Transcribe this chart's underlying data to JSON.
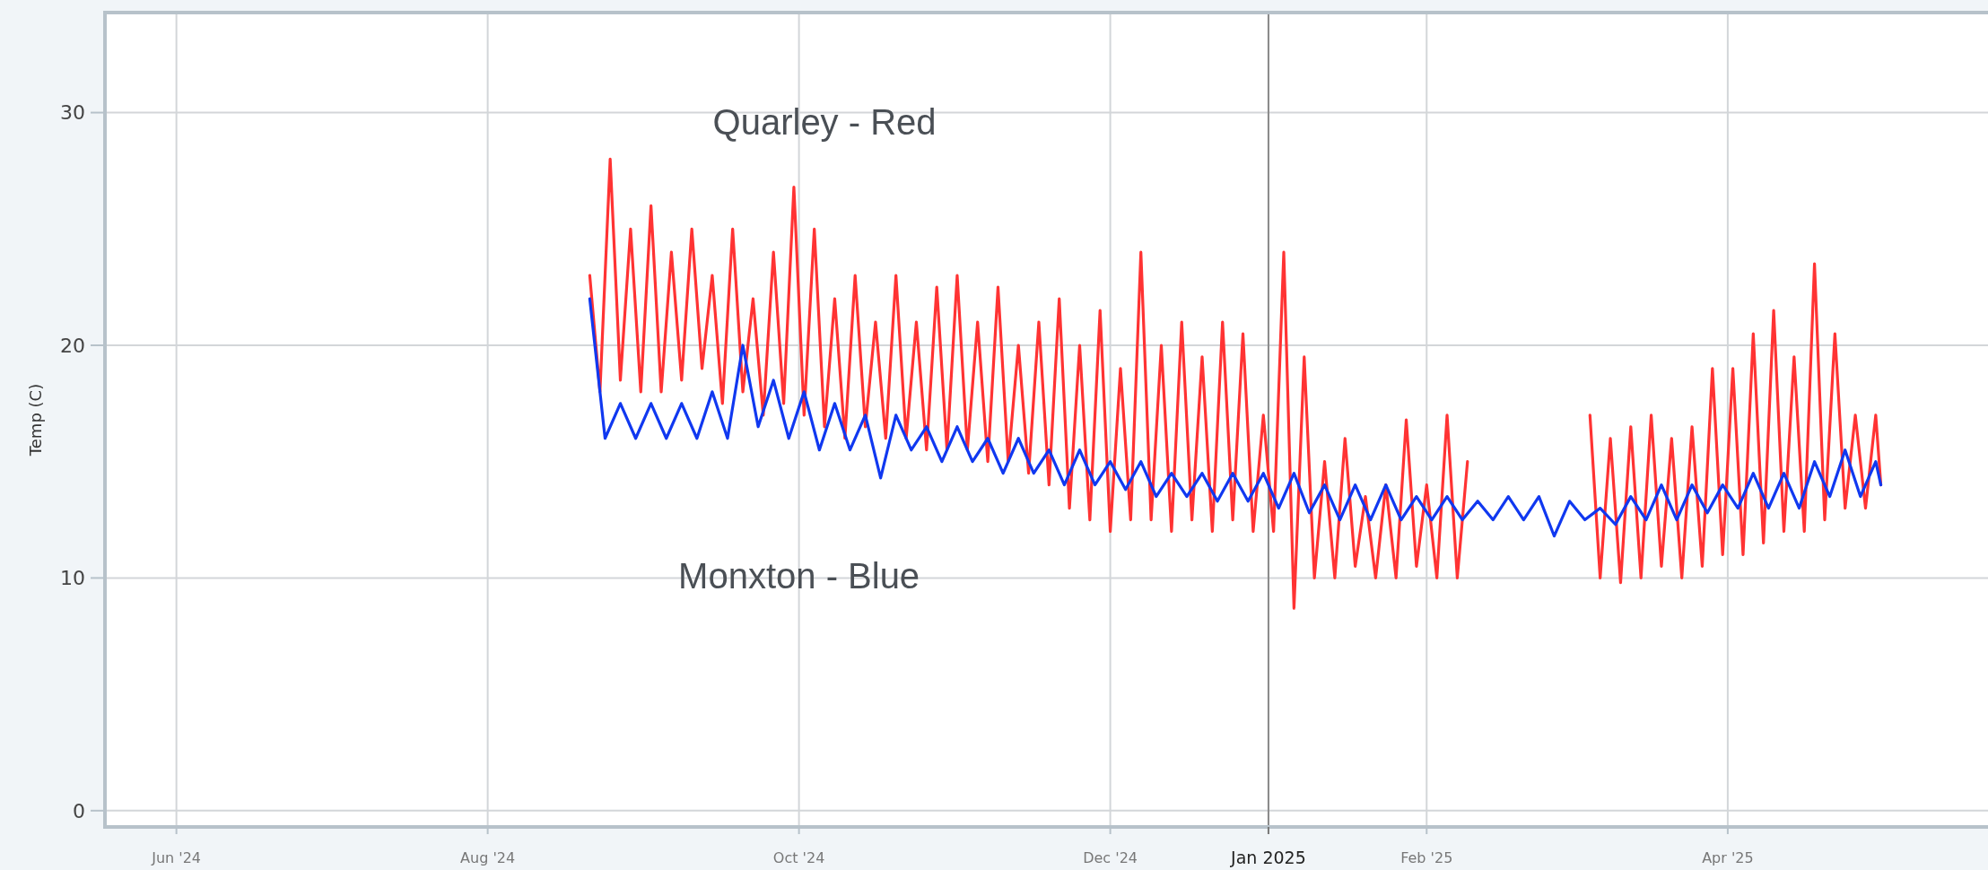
{
  "chart_data": {
    "type": "line",
    "ylabel": "Temp (C)",
    "xlim": [
      "2024-05-18",
      "2025-05-22"
    ],
    "xticks": [
      {
        "value": "2024-06-01",
        "label": "Jun '24"
      },
      {
        "value": "2024-08-01",
        "label": "Aug '24"
      },
      {
        "value": "2024-10-01",
        "label": "Oct '24"
      },
      {
        "value": "2024-12-01",
        "label": "Dec '24"
      },
      {
        "value": "2025-01-01",
        "label": "Jan 2025"
      },
      {
        "value": "2025-02-01",
        "label": "Feb '25"
      },
      {
        "value": "2025-04-01",
        "label": "Apr '25"
      }
    ],
    "ylim": [
      -0.7,
      34.3
    ],
    "yticks": [
      0,
      10,
      20,
      30
    ],
    "grid": true,
    "marker": "none",
    "line_style": "solid",
    "ref_lines": [
      {
        "axis": "x",
        "value": "2025-01-01",
        "color": "#8a8a8a"
      }
    ],
    "annotations": [
      "Quarley - Red",
      "Monxton - Blue"
    ],
    "series": [
      {
        "color": "#ff3333",
        "x": [
          "2024-08-21",
          "2024-08-23",
          "2024-08-25",
          "2024-08-27",
          "2024-08-29",
          "2024-08-31",
          "2024-09-02",
          "2024-09-04",
          "2024-09-06",
          "2024-09-08",
          "2024-09-10",
          "2024-09-12",
          "2024-09-14",
          "2024-09-16",
          "2024-09-18",
          "2024-09-20",
          "2024-09-22",
          "2024-09-24",
          "2024-09-26",
          "2024-09-28",
          "2024-09-30",
          "2024-10-02",
          "2024-10-04",
          "2024-10-06",
          "2024-10-08",
          "2024-10-10",
          "2024-10-12",
          "2024-10-14",
          "2024-10-16",
          "2024-10-18",
          "2024-10-20",
          "2024-10-22",
          "2024-10-24",
          "2024-10-26",
          "2024-10-28",
          "2024-10-30",
          "2024-11-01",
          "2024-11-03",
          "2024-11-05",
          "2024-11-07",
          "2024-11-09",
          "2024-11-11",
          "2024-11-13",
          "2024-11-15",
          "2024-11-17",
          "2024-11-19",
          "2024-11-21",
          "2024-11-23",
          "2024-11-25",
          "2024-11-27",
          "2024-11-29",
          "2024-12-01",
          "2024-12-03",
          "2024-12-05",
          "2024-12-07",
          "2024-12-09",
          "2024-12-11",
          "2024-12-13",
          "2024-12-15",
          "2024-12-17",
          "2024-12-19",
          "2024-12-21",
          "2024-12-23",
          "2024-12-25",
          "2024-12-27",
          "2024-12-29",
          "2024-12-31",
          "2025-01-02",
          "2025-01-04",
          "2025-01-06",
          "2025-01-08",
          "2025-01-10",
          "2025-01-12",
          "2025-01-14",
          "2025-01-16",
          "2025-01-18",
          "2025-01-20",
          "2025-01-22",
          "2025-01-24",
          "2025-01-26",
          "2025-01-28",
          "2025-01-30",
          "2025-02-01",
          "2025-02-03",
          "2025-02-05",
          "2025-02-07",
          "2025-02-09",
          "2025-02-20",
          "2025-03-05",
          "2025-03-07",
          "2025-03-09",
          "2025-03-11",
          "2025-03-13",
          "2025-03-15",
          "2025-03-17",
          "2025-03-19",
          "2025-03-21",
          "2025-03-23",
          "2025-03-25",
          "2025-03-27",
          "2025-03-29",
          "2025-03-31",
          "2025-04-02",
          "2025-04-04",
          "2025-04-06",
          "2025-04-08",
          "2025-04-10",
          "2025-04-12",
          "2025-04-14",
          "2025-04-16",
          "2025-04-18",
          "2025-04-20",
          "2025-04-22",
          "2025-04-24",
          "2025-04-26",
          "2025-04-28",
          "2025-04-30",
          "2025-05-01"
        ],
        "values": [
          23,
          18,
          28,
          18.5,
          25,
          18,
          26,
          18,
          24,
          18.5,
          25,
          19,
          23,
          17.5,
          25,
          18,
          22,
          17,
          24,
          17.5,
          26.8,
          17,
          25,
          16.5,
          22,
          16,
          23,
          16.5,
          21,
          16,
          23,
          16,
          21,
          15.5,
          22.5,
          15.5,
          23,
          15.5,
          21,
          15,
          22.5,
          15,
          20,
          14.5,
          21,
          14,
          22,
          13,
          20,
          12.5,
          21.5,
          12,
          19,
          12.5,
          24,
          12.5,
          20,
          12,
          21,
          12.5,
          19.5,
          12,
          21,
          12.5,
          20.5,
          12,
          17,
          12,
          24,
          8.7,
          19.5,
          10,
          15,
          10,
          16,
          10.5,
          13.5,
          10,
          14,
          10,
          16.8,
          10.5,
          14,
          10,
          17,
          10,
          15,
          null,
          17,
          10,
          16,
          9.8,
          16.5,
          10,
          17,
          10.5,
          16,
          10,
          16.5,
          10.5,
          19,
          11,
          19,
          11,
          20.5,
          11.5,
          21.5,
          12,
          19.5,
          12,
          23.5,
          12.5,
          20.5,
          13,
          17,
          13,
          17,
          14
        ]
      },
      {
        "color": "#1038f0",
        "x": [
          "2024-08-21",
          "2024-08-24",
          "2024-08-27",
          "2024-08-30",
          "2024-09-02",
          "2024-09-05",
          "2024-09-08",
          "2024-09-11",
          "2024-09-14",
          "2024-09-17",
          "2024-09-20",
          "2024-09-23",
          "2024-09-26",
          "2024-09-29",
          "2024-10-02",
          "2024-10-05",
          "2024-10-08",
          "2024-10-11",
          "2024-10-14",
          "2024-10-17",
          "2024-10-20",
          "2024-10-23",
          "2024-10-26",
          "2024-10-29",
          "2024-11-01",
          "2024-11-04",
          "2024-11-07",
          "2024-11-10",
          "2024-11-13",
          "2024-11-16",
          "2024-11-19",
          "2024-11-22",
          "2024-11-25",
          "2024-11-28",
          "2024-12-01",
          "2024-12-04",
          "2024-12-07",
          "2024-12-10",
          "2024-12-13",
          "2024-12-16",
          "2024-12-19",
          "2024-12-22",
          "2024-12-25",
          "2024-12-28",
          "2024-12-31",
          "2025-01-03",
          "2025-01-06",
          "2025-01-09",
          "2025-01-12",
          "2025-01-15",
          "2025-01-18",
          "2025-01-21",
          "2025-01-24",
          "2025-01-27",
          "2025-01-30",
          "2025-02-02",
          "2025-02-05",
          "2025-02-08",
          "2025-02-11",
          "2025-02-14",
          "2025-02-17",
          "2025-02-20",
          "2025-02-23",
          "2025-02-26",
          "2025-03-01",
          "2025-03-04",
          "2025-03-07",
          "2025-03-10",
          "2025-03-13",
          "2025-03-16",
          "2025-03-19",
          "2025-03-22",
          "2025-03-25",
          "2025-03-28",
          "2025-03-31",
          "2025-04-03",
          "2025-04-06",
          "2025-04-09",
          "2025-04-12",
          "2025-04-15",
          "2025-04-18",
          "2025-04-21",
          "2025-04-24",
          "2025-04-27",
          "2025-04-30",
          "2025-05-01"
        ],
        "values": [
          22,
          16,
          17.5,
          16,
          17.5,
          16,
          17.5,
          16,
          18,
          16,
          20,
          16.5,
          18.5,
          16,
          18,
          15.5,
          17.5,
          15.5,
          17,
          14.3,
          17,
          15.5,
          16.5,
          15,
          16.5,
          15,
          16,
          14.5,
          16,
          14.5,
          15.5,
          14,
          15.5,
          14,
          15,
          13.8,
          15,
          13.5,
          14.5,
          13.5,
          14.5,
          13.3,
          14.5,
          13.3,
          14.5,
          13,
          14.5,
          12.8,
          14,
          12.5,
          14,
          12.5,
          14,
          12.5,
          13.5,
          12.5,
          13.5,
          12.5,
          13.3,
          12.5,
          13.5,
          12.5,
          13.5,
          11.8,
          13.3,
          12.5,
          13,
          12.3,
          13.5,
          12.5,
          14,
          12.5,
          14,
          12.8,
          14,
          13,
          14.5,
          13,
          14.5,
          13,
          15,
          13.5,
          15.5,
          13.5,
          15,
          14
        ]
      }
    ]
  }
}
